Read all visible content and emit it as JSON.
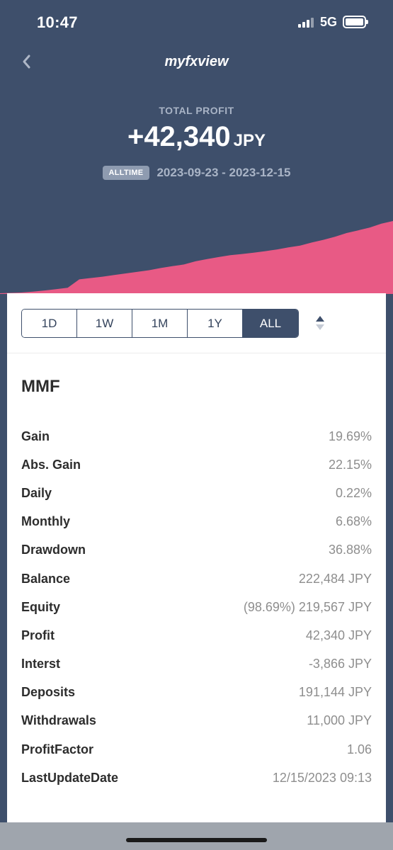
{
  "status": {
    "time": "10:47",
    "network": "5G"
  },
  "header": {
    "title": "myfxview"
  },
  "summary": {
    "label": "TOTAL PROFIT",
    "amount": "+42,340",
    "currency": "JPY",
    "badge": "ALLTIME",
    "range": "2023-09-23 - 2023-12-15"
  },
  "chart_data": {
    "type": "area",
    "title": "",
    "xlabel": "",
    "ylabel": "",
    "color": "#e85a85",
    "x_start": "2023-09-23",
    "x_end": "2023-12-15",
    "values": [
      0,
      500,
      1200,
      2000,
      2800,
      7800,
      8600,
      9400,
      10400,
      11300,
      12300,
      13200,
      14500,
      15600,
      16600,
      18500,
      19800,
      21000,
      22100,
      22800,
      23600,
      24500,
      25500,
      26700,
      27800,
      29600,
      31200,
      33000,
      35200,
      36800,
      38500,
      40800,
      42340
    ],
    "ylim": [
      0,
      42340
    ]
  },
  "tabs": [
    {
      "label": "1D",
      "active": false
    },
    {
      "label": "1W",
      "active": false
    },
    {
      "label": "1M",
      "active": false
    },
    {
      "label": "1Y",
      "active": false
    },
    {
      "label": "ALL",
      "active": true
    }
  ],
  "account": {
    "name": "MMF",
    "stats": [
      {
        "label": "Gain",
        "value": "19.69%"
      },
      {
        "label": "Abs. Gain",
        "value": "22.15%"
      },
      {
        "label": "Daily",
        "value": "0.22%"
      },
      {
        "label": "Monthly",
        "value": "6.68%"
      },
      {
        "label": "Drawdown",
        "value": "36.88%"
      },
      {
        "label": "Balance",
        "value": "222,484 JPY"
      },
      {
        "label": "Equity",
        "value": "(98.69%) 219,567 JPY"
      },
      {
        "label": "Profit",
        "value": "42,340 JPY"
      },
      {
        "label": "Interst",
        "value": "-3,866 JPY"
      },
      {
        "label": "Deposits",
        "value": "191,144 JPY"
      },
      {
        "label": "Withdrawals",
        "value": "11,000 JPY"
      },
      {
        "label": "ProfitFactor",
        "value": "1.06"
      },
      {
        "label": "LastUpdateDate",
        "value": "12/15/2023 09:13"
      }
    ]
  }
}
